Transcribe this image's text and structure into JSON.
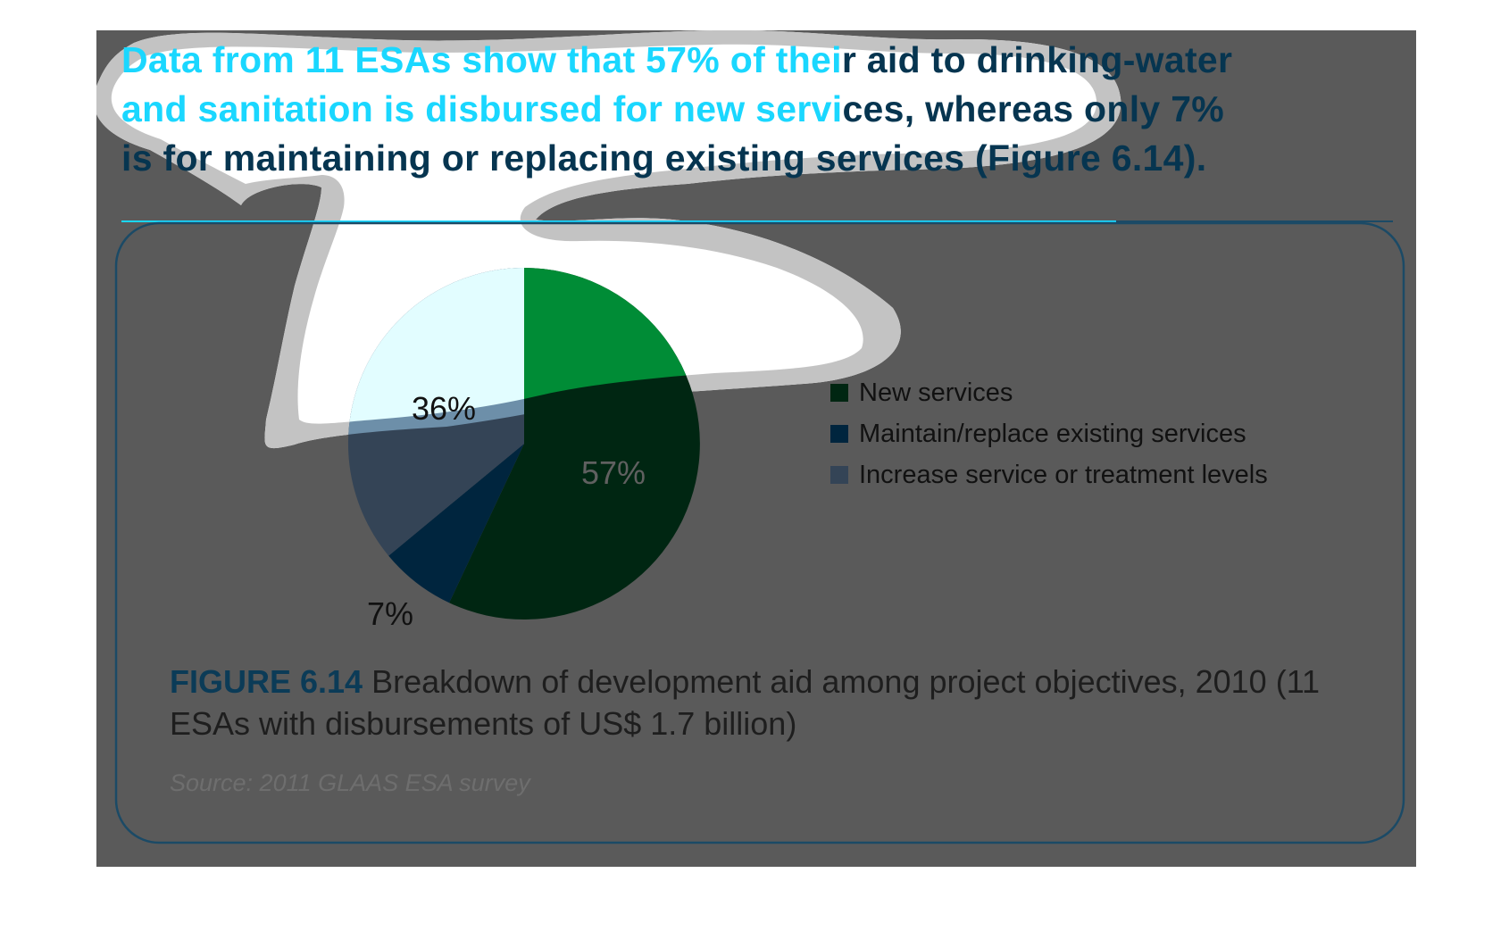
{
  "headline": {
    "line1_a": "Data from 11 ESAs show that 57% of thei",
    "line1_b": "r aid to drinking-water",
    "line2_a": "and sanitation is disbursed for new servi",
    "line2_b": "ces, whereas only 7%",
    "line3": "is for maintaining or replacing existing services (Figure 6.14)."
  },
  "figure": {
    "number": "FIGURE 6.14",
    "caption": " Breakdown of development aid among project objectives, 2010 (11 ESAs with disbursements of US$ 1.7 billion)",
    "source": "Source: 2011 GLAAS ESA survey"
  },
  "colors": {
    "overlay": "#5a5a5a",
    "panel_border": "#1b4a66",
    "new_services_top": "#008c36",
    "new_services": "#002612",
    "maintain_replace": "#00253e",
    "increase_levels": "#344456",
    "increase_levels_highlight": "#e2fdff",
    "increase_levels_mid": "#6d8fa9"
  },
  "chart_data": {
    "type": "pie",
    "title": "",
    "slices": [
      {
        "label": "New services",
        "value": 57,
        "display": "57%"
      },
      {
        "label": "Maintain/replace existing services",
        "value": 7,
        "display": "7%"
      },
      {
        "label": "Increase service or treatment levels",
        "value": 36,
        "display": "36%"
      }
    ],
    "legend": [
      "New services",
      "Maintain/replace existing services",
      "Increase service or treatment levels"
    ],
    "legend_position": "right"
  }
}
